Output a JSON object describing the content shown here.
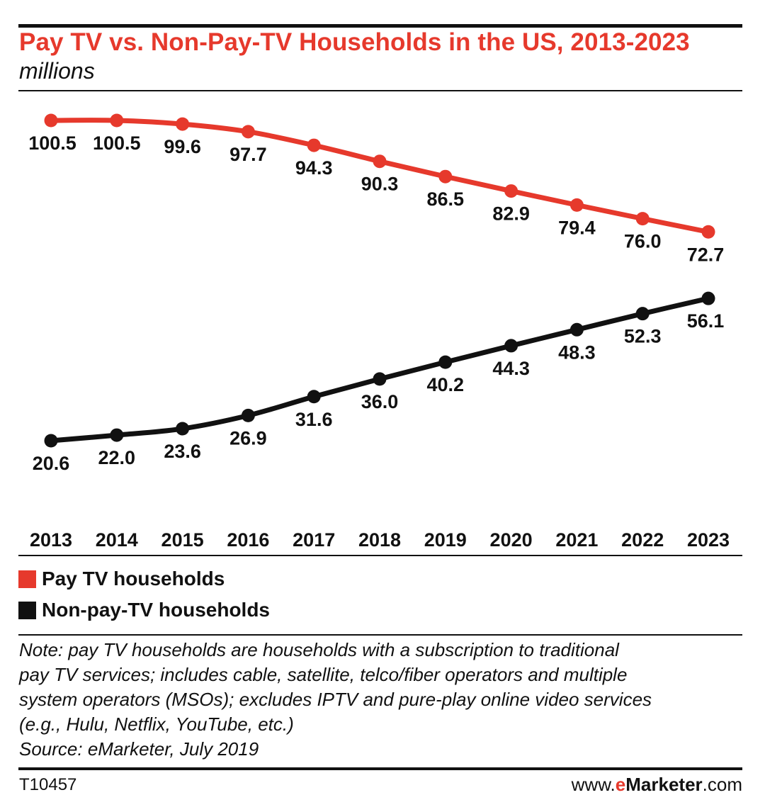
{
  "header": {
    "title": "Pay TV vs. Non-Pay-TV Households in the US, 2013-2023",
    "subtitle": "millions"
  },
  "colors": {
    "pay_tv": "#e6392c",
    "non_pay_tv": "#111111"
  },
  "chart_data": {
    "type": "line",
    "title": "Pay TV vs. Non-Pay-TV Households in the US, 2013-2023",
    "subtitle": "millions",
    "x": [
      "2013",
      "2014",
      "2015",
      "2016",
      "2017",
      "2018",
      "2019",
      "2020",
      "2021",
      "2022",
      "2023"
    ],
    "series": [
      {
        "name": "Pay TV households",
        "color": "#e6392c",
        "values": [
          100.5,
          100.5,
          99.6,
          97.7,
          94.3,
          90.3,
          86.5,
          82.9,
          79.4,
          76.0,
          72.7
        ],
        "labels": [
          "100.5",
          "100.5",
          "99.6",
          "97.7",
          "94.3",
          "90.3",
          "86.5",
          "82.9",
          "79.4",
          "76.0",
          "72.7"
        ]
      },
      {
        "name": "Non-pay-TV households",
        "color": "#111111",
        "values": [
          20.6,
          22.0,
          23.6,
          26.9,
          31.6,
          36.0,
          40.2,
          44.3,
          48.3,
          52.3,
          56.1
        ],
        "labels": [
          "20.6",
          "22.0",
          "23.6",
          "26.9",
          "31.6",
          "36.0",
          "40.2",
          "44.3",
          "48.3",
          "52.3",
          "56.1"
        ]
      }
    ],
    "grid": false,
    "legend_position": "bottom-left"
  },
  "legend": {
    "pay_tv": "Pay TV households",
    "non_pay_tv": "Non-pay-TV households"
  },
  "footer": {
    "note_lines": [
      "Note: pay TV households are households with a subscription to traditional",
      "pay TV services; includes cable, satellite, telco/fiber operators and multiple",
      "system operators (MSOs); excludes IPTV and pure-play online video services",
      "(e.g., Hulu, Netflix, YouTube, etc.)",
      "Source: eMarketer, July 2019"
    ],
    "chart_id": "T10457",
    "brand_prefix": "www.",
    "brand_e": "e",
    "brand_name": "Marketer",
    "brand_suffix": ".com"
  }
}
